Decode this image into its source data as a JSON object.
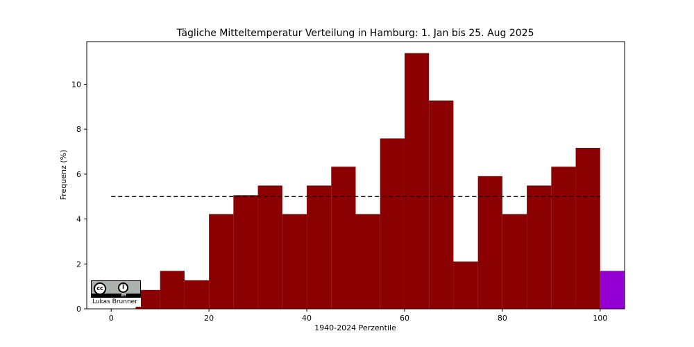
{
  "chart_data": {
    "type": "bar",
    "title": "Tägliche Mitteltemperatur Verteilung in Hamburg: 1. Jan bis 25. Aug 2025",
    "xlabel": "1940-2024 Perzentile",
    "ylabel": "Frequenz (%)",
    "xlim": [
      -5,
      105
    ],
    "ylim": [
      0,
      11.9
    ],
    "xticks": [
      0,
      20,
      40,
      60,
      80,
      100
    ],
    "yticks": [
      0,
      2,
      4,
      6,
      8,
      10
    ],
    "bins": [
      {
        "x0": 5,
        "x1": 10,
        "value": 0.84
      },
      {
        "x0": 10,
        "x1": 15,
        "value": 1.69
      },
      {
        "x0": 15,
        "x1": 20,
        "value": 1.27
      },
      {
        "x0": 20,
        "x1": 25,
        "value": 4.22
      },
      {
        "x0": 25,
        "x1": 30,
        "value": 5.06
      },
      {
        "x0": 30,
        "x1": 35,
        "value": 5.49
      },
      {
        "x0": 35,
        "x1": 40,
        "value": 4.22
      },
      {
        "x0": 40,
        "x1": 45,
        "value": 5.49
      },
      {
        "x0": 45,
        "x1": 50,
        "value": 6.33
      },
      {
        "x0": 50,
        "x1": 55,
        "value": 4.22
      },
      {
        "x0": 55,
        "x1": 60,
        "value": 7.59
      },
      {
        "x0": 60,
        "x1": 65,
        "value": 11.39
      },
      {
        "x0": 65,
        "x1": 70,
        "value": 9.28
      },
      {
        "x0": 70,
        "x1": 75,
        "value": 2.11
      },
      {
        "x0": 75,
        "x1": 80,
        "value": 5.91
      },
      {
        "x0": 80,
        "x1": 85,
        "value": 4.22
      },
      {
        "x0": 85,
        "x1": 90,
        "value": 5.49
      },
      {
        "x0": 90,
        "x1": 95,
        "value": 6.33
      },
      {
        "x0": 95,
        "x1": 100,
        "value": 7.17
      }
    ],
    "extreme_bin": {
      "x0": 100,
      "x1": 105,
      "value": 1.69
    },
    "reference_line": {
      "value": 5,
      "x0": 0,
      "x1": 100,
      "style": "dashed"
    },
    "colors": {
      "bars": "#8b0000",
      "extreme": "#9400d3",
      "reference": "#000000"
    },
    "grid": false
  },
  "credit": {
    "license_cc": "cc",
    "license_by": "BY",
    "author": "Lukas Brunner"
  }
}
